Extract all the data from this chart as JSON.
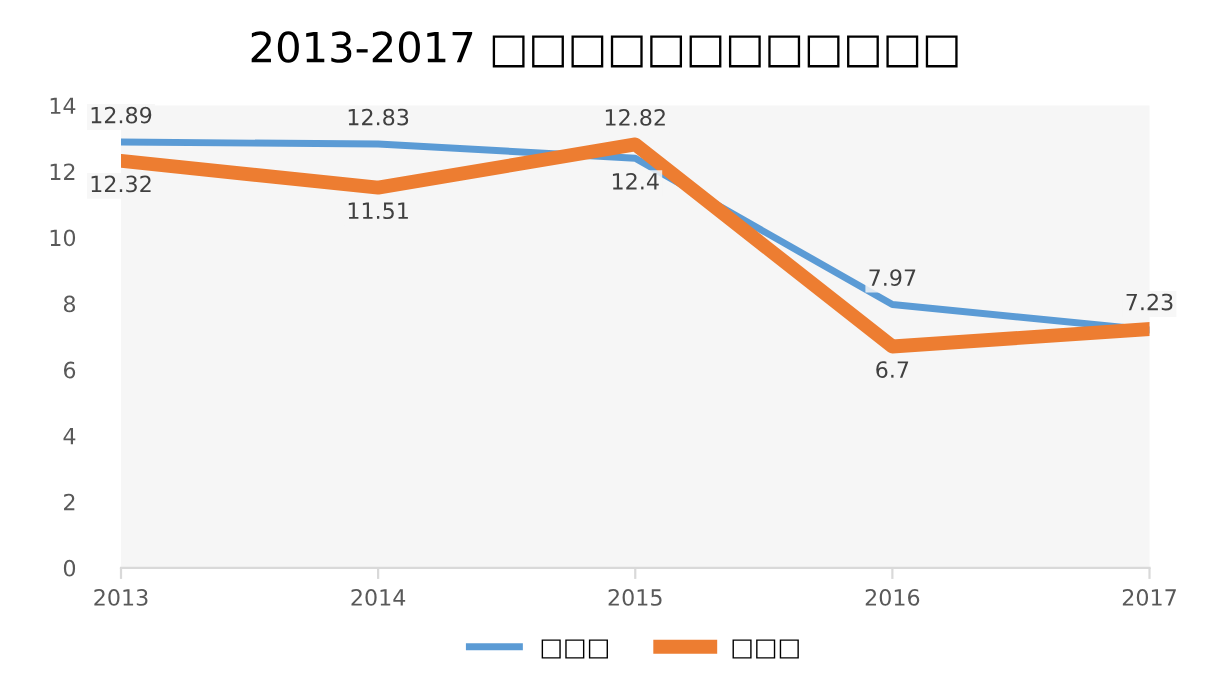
{
  "chart_data": {
    "type": "line",
    "title": "2013-2017 □□□□□□□□□□□□",
    "x": [
      2013,
      2014,
      2015,
      2016,
      2017
    ],
    "series": [
      {
        "name": "□□□",
        "color": "#5b9bd5",
        "values": [
          12.89,
          12.83,
          12.4,
          7.97,
          7.2
        ],
        "value_labels": [
          "12.89",
          "12.83",
          "12.4",
          "7.97",
          null
        ]
      },
      {
        "name": "□□□",
        "color": "#ed7d31",
        "values": [
          12.32,
          11.51,
          12.82,
          6.7,
          7.23
        ],
        "value_labels": [
          "12.32",
          "11.51",
          "12.82",
          "6.7",
          "7.23"
        ]
      }
    ],
    "xlim": [
      2013,
      2017
    ],
    "xticks": [
      2013,
      2014,
      2015,
      2016,
      2017
    ],
    "ylim": [
      0,
      14
    ],
    "yticks": [
      0,
      2,
      4,
      6,
      8,
      10,
      12,
      14
    ],
    "grid": false,
    "legend": "bottom",
    "marker": "none",
    "line_style": "solid"
  }
}
